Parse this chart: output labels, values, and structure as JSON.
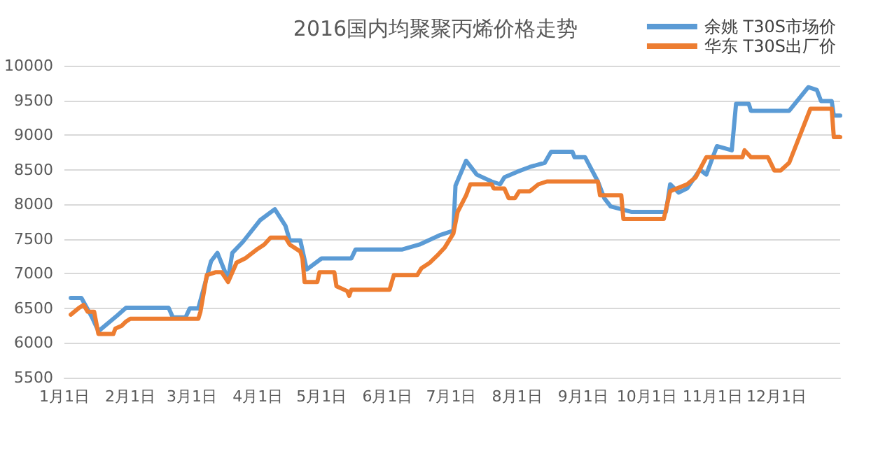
{
  "chart_data": {
    "type": "line",
    "title": "2016国内均聚聚丙烯价格走势",
    "series": [
      {
        "name": "余姚 T30S市场价",
        "color": "#5b9bd5",
        "x": [
          "2016-01-04",
          "2016-01-09",
          "2016-01-14",
          "2016-01-17",
          "2016-01-26",
          "2016-01-30",
          "2016-02-19",
          "2016-02-21",
          "2016-02-27",
          "2016-02-29",
          "2016-03-04",
          "2016-03-10",
          "2016-03-13",
          "2016-03-18",
          "2016-03-20",
          "2016-03-25",
          "2016-04-02",
          "2016-04-09",
          "2016-04-14",
          "2016-04-16",
          "2016-04-21",
          "2016-04-24",
          "2016-05-01",
          "2016-05-15",
          "2016-05-17",
          "2016-06-08",
          "2016-06-16",
          "2016-06-26",
          "2016-07-02",
          "2016-07-03",
          "2016-07-08",
          "2016-07-13",
          "2016-07-20",
          "2016-07-24",
          "2016-07-26",
          "2016-08-01",
          "2016-08-07",
          "2016-08-14",
          "2016-08-17",
          "2016-08-27",
          "2016-08-28",
          "2016-09-02",
          "2016-09-08",
          "2016-09-11",
          "2016-09-14",
          "2016-09-24",
          "2016-10-10",
          "2016-10-12",
          "2016-10-16",
          "2016-10-20",
          "2016-10-26",
          "2016-10-29",
          "2016-11-03",
          "2016-11-10",
          "2016-11-12",
          "2016-11-18",
          "2016-11-19",
          "2016-12-07",
          "2016-12-16",
          "2016-12-20",
          "2016-12-22",
          "2016-12-27",
          "2016-12-28",
          "2016-12-31"
        ],
        "values": [
          6650,
          6650,
          6370,
          6170,
          6400,
          6510,
          6510,
          6370,
          6370,
          6500,
          6500,
          7180,
          7300,
          6920,
          7300,
          7460,
          7770,
          7930,
          7690,
          7480,
          7480,
          7060,
          7220,
          7220,
          7350,
          7350,
          7420,
          7560,
          7620,
          8270,
          8630,
          8430,
          8330,
          8290,
          8390,
          8470,
          8540,
          8600,
          8760,
          8760,
          8680,
          8680,
          8330,
          8090,
          7970,
          7890,
          7890,
          8290,
          8170,
          8230,
          8500,
          8430,
          8840,
          8780,
          9450,
          9450,
          9350,
          9350,
          9690,
          9650,
          9490,
          9490,
          9280,
          9280
        ]
      },
      {
        "name": "华东 T30S出厂价",
        "color": "#ed7d31",
        "x": [
          "2016-01-04",
          "2016-01-08",
          "2016-01-10",
          "2016-01-12",
          "2016-01-15",
          "2016-01-17",
          "2016-01-24",
          "2016-01-25",
          "2016-01-28",
          "2016-01-30",
          "2016-02-01",
          "2016-03-04",
          "2016-03-05",
          "2016-03-08",
          "2016-03-12",
          "2016-03-15",
          "2016-03-18",
          "2016-03-22",
          "2016-03-26",
          "2016-04-01",
          "2016-04-04",
          "2016-04-07",
          "2016-04-14",
          "2016-04-16",
          "2016-04-21",
          "2016-04-22",
          "2016-04-23",
          "2016-04-29",
          "2016-04-30",
          "2016-05-07",
          "2016-05-08",
          "2016-05-13",
          "2016-05-14",
          "2016-05-15",
          "2016-06-02",
          "2016-06-04",
          "2016-06-15",
          "2016-06-17",
          "2016-06-21",
          "2016-06-25",
          "2016-06-28",
          "2016-07-02",
          "2016-07-04",
          "2016-07-08",
          "2016-07-10",
          "2016-07-20",
          "2016-07-21",
          "2016-07-26",
          "2016-07-28",
          "2016-07-31",
          "2016-08-02",
          "2016-08-07",
          "2016-08-11",
          "2016-08-15",
          "2016-09-08",
          "2016-09-09",
          "2016-09-19",
          "2016-09-20",
          "2016-10-09",
          "2016-10-12",
          "2016-10-20",
          "2016-10-24",
          "2016-10-29",
          "2016-11-15",
          "2016-11-16",
          "2016-11-19",
          "2016-11-27",
          "2016-11-30",
          "2016-12-03",
          "2016-12-07",
          "2016-12-17",
          "2016-12-27",
          "2016-12-28",
          "2016-12-31"
        ],
        "values": [
          6410,
          6510,
          6550,
          6450,
          6450,
          6130,
          6130,
          6210,
          6250,
          6310,
          6350,
          6350,
          6450,
          6980,
          7020,
          7020,
          6880,
          7160,
          7220,
          7360,
          7420,
          7520,
          7520,
          7420,
          7320,
          7220,
          6880,
          6880,
          7020,
          7020,
          6820,
          6750,
          6680,
          6770,
          6770,
          6980,
          6980,
          7080,
          7160,
          7280,
          7380,
          7580,
          7890,
          8130,
          8290,
          8290,
          8230,
          8230,
          8090,
          8090,
          8190,
          8190,
          8290,
          8330,
          8330,
          8130,
          8130,
          7790,
          7790,
          8190,
          8290,
          8390,
          8680,
          8680,
          8780,
          8680,
          8680,
          8490,
          8490,
          8600,
          9380,
          9380,
          8970,
          8970
        ]
      }
    ],
    "xlim": [
      "2016-01-01",
      "2016-12-31"
    ],
    "xticks": [
      {
        "value": "2016-01-01",
        "label": "1月1日"
      },
      {
        "value": "2016-02-01",
        "label": "2月1日"
      },
      {
        "value": "2016-03-01",
        "label": "3月1日"
      },
      {
        "value": "2016-04-01",
        "label": "4月1日"
      },
      {
        "value": "2016-05-01",
        "label": "5月1日"
      },
      {
        "value": "2016-06-01",
        "label": "6月1日"
      },
      {
        "value": "2016-07-01",
        "label": "7月1日"
      },
      {
        "value": "2016-08-01",
        "label": "8月1日"
      },
      {
        "value": "2016-09-01",
        "label": "9月1日"
      },
      {
        "value": "2016-10-01",
        "label": "10月1日"
      },
      {
        "value": "2016-11-01",
        "label": "11月1日"
      },
      {
        "value": "2016-12-01",
        "label": "12月1日"
      }
    ],
    "ylim": [
      5500,
      10000
    ],
    "yticks": [
      5500,
      6000,
      6500,
      7000,
      7500,
      8000,
      8500,
      9000,
      9500,
      10000
    ],
    "grid": "y",
    "legend": "top right",
    "marker": "none",
    "line_style": "solid"
  }
}
